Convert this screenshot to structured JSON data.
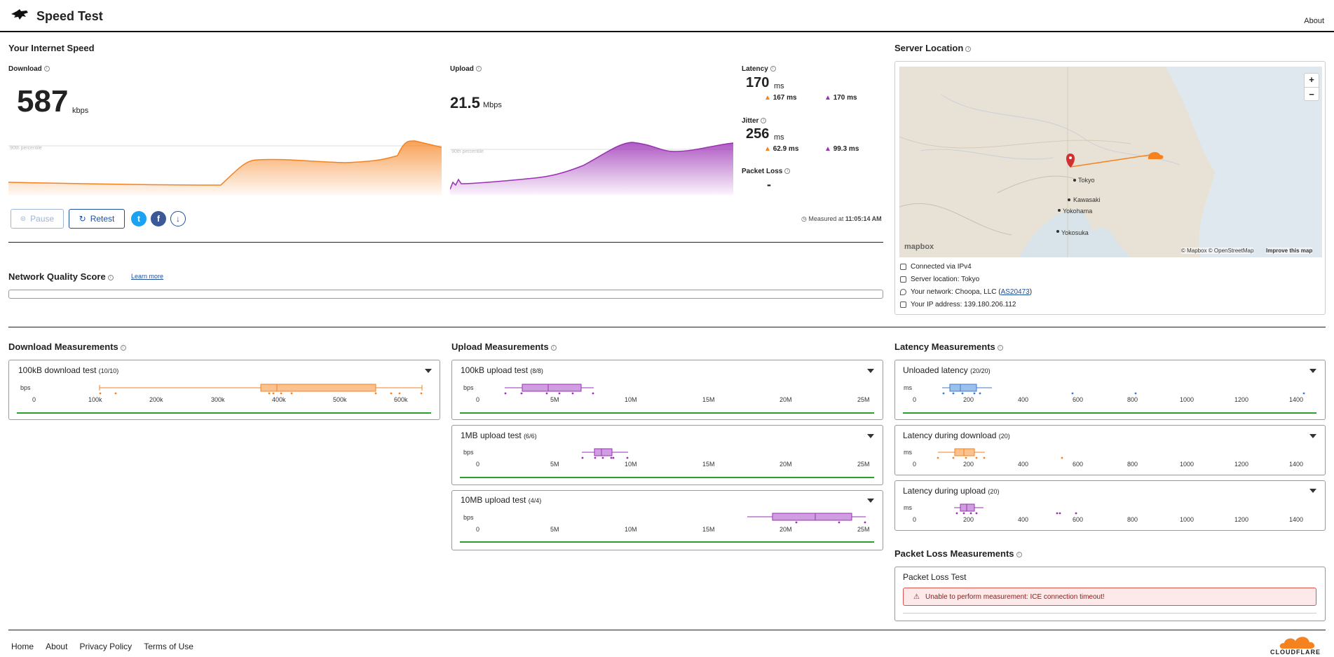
{
  "header": {
    "title": "Speed Test",
    "about": "About"
  },
  "speed": {
    "section_title": "Your Internet Speed",
    "download": {
      "label": "Download",
      "value": "587",
      "unit": "kbps",
      "percentile": "90th percentile"
    },
    "upload": {
      "label": "Upload",
      "value": "21.5",
      "unit": "Mbps",
      "percentile": "90th percentile"
    },
    "latency": {
      "label": "Latency",
      "value": "170",
      "unit": "ms",
      "down": "167 ms",
      "up": "170 ms"
    },
    "jitter": {
      "label": "Jitter",
      "value": "256",
      "unit": "ms",
      "down": "62.9 ms",
      "up": "99.3 ms"
    },
    "packet_loss": {
      "label": "Packet Loss",
      "value": "-"
    },
    "buttons": {
      "pause": "Pause",
      "retest": "Retest"
    },
    "measured_label": "Measured at",
    "measured_time": "11:05:14 AM"
  },
  "server": {
    "title": "Server Location",
    "map_labels": [
      "Tokyo",
      "Kawasaki",
      "Yokohama",
      "Yokosuka"
    ],
    "attribution": "© Mapbox © OpenStreetMap",
    "improve": "Improve this map",
    "mapbox": "mapbox",
    "connected": "Connected via IPv4",
    "location": "Server location: Tokyo",
    "network_prefix": "Your network: Choopa, LLC (",
    "network_as": "AS20473",
    "network_suffix": ")",
    "ip": "Your IP address: 139.180.206.112",
    "zoom_in": "+",
    "zoom_out": "−"
  },
  "nqs": {
    "title": "Network Quality Score",
    "learn_more": "Learn more"
  },
  "measurements": {
    "download_title": "Download Measurements",
    "upload_title": "Upload Measurements",
    "latency_title": "Latency Measurements",
    "packet_title": "Packet Loss Measurements",
    "dl": [
      {
        "name": "100kB download test",
        "count": "(10/10)",
        "unit": "bps",
        "ticks": [
          "0",
          "100k",
          "200k",
          "300k",
          "400k",
          "500k",
          "600k"
        ]
      }
    ],
    "ul": [
      {
        "name": "100kB upload test",
        "count": "(8/8)",
        "unit": "bps",
        "ticks": [
          "0",
          "5M",
          "10M",
          "15M",
          "20M",
          "25M"
        ]
      },
      {
        "name": "1MB upload test",
        "count": "(6/6)",
        "unit": "bps",
        "ticks": [
          "0",
          "5M",
          "10M",
          "15M",
          "20M",
          "25M"
        ]
      },
      {
        "name": "10MB upload test",
        "count": "(4/4)",
        "unit": "bps",
        "ticks": [
          "0",
          "5M",
          "10M",
          "15M",
          "20M",
          "25M"
        ]
      }
    ],
    "lat": [
      {
        "name": "Unloaded latency",
        "count": "(20/20)",
        "unit": "ms",
        "ticks": [
          "0",
          "200",
          "400",
          "600",
          "800",
          "1000",
          "1200",
          "1400"
        ]
      },
      {
        "name": "Latency during download",
        "count": "(20)",
        "unit": "ms",
        "ticks": [
          "0",
          "200",
          "400",
          "600",
          "800",
          "1000",
          "1200",
          "1400"
        ]
      },
      {
        "name": "Latency during upload",
        "count": "(20)",
        "unit": "ms",
        "ticks": [
          "0",
          "200",
          "400",
          "600",
          "800",
          "1000",
          "1200",
          "1400"
        ]
      }
    ],
    "packet": {
      "name": "Packet Loss Test",
      "error": "Unable to perform measurement: ICE connection timeout!"
    }
  },
  "footer": {
    "links": [
      "Home",
      "About",
      "Privacy Policy",
      "Terms of Use"
    ],
    "brand": "CLOUDFLARE"
  },
  "colors": {
    "download": "#f6821f",
    "upload": "#9b30b5",
    "latency": "#3b7ad1",
    "accent": "#1d4f9b",
    "good": "#2ca02c"
  }
}
